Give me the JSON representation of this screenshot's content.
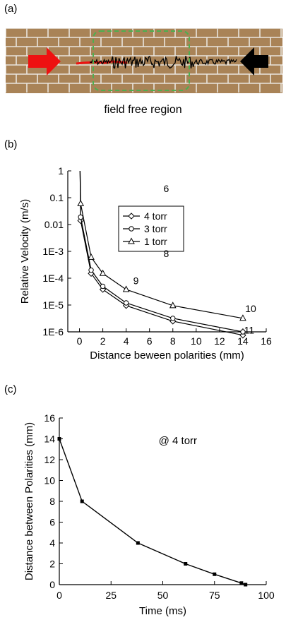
{
  "panels": {
    "a": {
      "label": "(a)",
      "caption": "field free region"
    },
    "b": {
      "label": "(b)"
    },
    "c": {
      "label": "(c)"
    }
  },
  "colors": {
    "brick": "#a98357",
    "mortar": "#e9e5de",
    "dashed_box": "#4caf50",
    "red_arrow": "#ee1111",
    "black_arrow": "#000000"
  },
  "icons": {
    "left_arrow": "red-arrow-right-icon",
    "right_arrow": "black-arrow-left-icon"
  },
  "chart_data": [
    {
      "type": "line",
      "xlabel": "Distance beween polarities (mm)",
      "ylabel": "Relative Velocity (m/s)",
      "xlim": [
        -1,
        16
      ],
      "ylim": [
        1e-06,
        1
      ],
      "yscale": "log",
      "xticks": [
        0,
        2,
        4,
        6,
        8,
        10,
        12,
        14,
        16
      ],
      "yticks": [
        {
          "v": 1,
          "label": "1"
        },
        {
          "v": 0.1,
          "label": "0.1"
        },
        {
          "v": 0.01,
          "label": "0.01"
        },
        {
          "v": 0.001,
          "label": "1E-3"
        },
        {
          "v": 0.0001,
          "label": "1E-4"
        },
        {
          "v": 1e-05,
          "label": "1E-5"
        },
        {
          "v": 1e-06,
          "label": "1E-6"
        }
      ],
      "legend_position": "center",
      "series": [
        {
          "name": "4 torr",
          "marker": "diamond",
          "x": [
            0.1,
            1,
            2,
            4,
            8,
            14
          ],
          "y": [
            0.014,
            0.00015,
            3.8e-05,
            9.5e-06,
            2.5e-06,
            7.5e-07
          ]
        },
        {
          "name": "3 torr",
          "marker": "circle",
          "x": [
            0.1,
            1,
            2,
            4,
            8,
            14
          ],
          "y": [
            0.019,
            0.0002,
            5e-05,
            1.2e-05,
            3.2e-06,
            1e-06
          ]
        },
        {
          "name": "1 torr",
          "marker": "triangle",
          "x": [
            0.1,
            1,
            2,
            4,
            8,
            14
          ],
          "y": [
            0.06,
            0.0006,
            0.00015,
            3.8e-05,
            9.5e-06,
            3.2e-06
          ]
        }
      ],
      "annotations": [
        {
          "text": "6",
          "x": 7.2,
          "y": 0.16
        },
        {
          "text": "8",
          "x": 7.2,
          "y": 0.00062
        },
        {
          "text": "9",
          "x": 4.6,
          "y": 6e-05
        },
        {
          "text": "10",
          "x": 14.2,
          "y": 5.5e-06
        },
        {
          "text": "11",
          "x": 14.1,
          "y": 8.5e-07
        }
      ]
    },
    {
      "type": "line",
      "xlabel": "Time (ms)",
      "ylabel": "Distance between Polarities (mm)",
      "xlim": [
        0,
        100
      ],
      "ylim": [
        0,
        16
      ],
      "xticks": [
        0,
        25,
        50,
        75,
        100
      ],
      "yticks": [
        0,
        2,
        4,
        6,
        8,
        10,
        12,
        14,
        16
      ],
      "series": [
        {
          "marker": "square",
          "x": [
            0,
            11,
            38,
            61,
            75,
            88,
            90
          ],
          "y": [
            14,
            8,
            4,
            2,
            1,
            0.15,
            0
          ]
        }
      ],
      "annotations": [
        {
          "text": "@ 4 torr",
          "x": 48,
          "y": 13.5
        }
      ]
    }
  ]
}
